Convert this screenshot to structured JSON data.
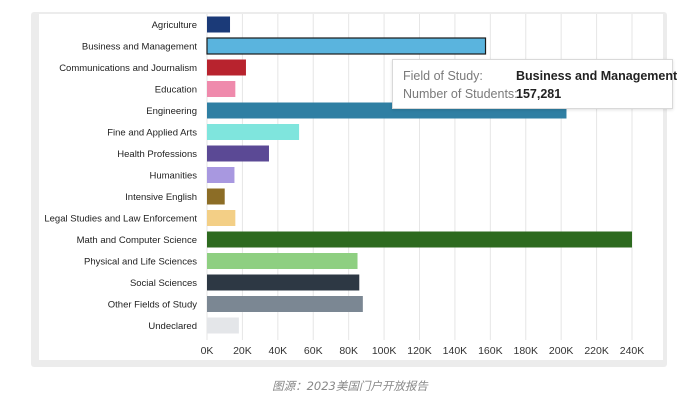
{
  "chart_data": {
    "type": "bar",
    "orientation": "horizontal",
    "categories": [
      "Agriculture",
      "Business and Management",
      "Communications and Journalism",
      "Education",
      "Engineering",
      "Fine and Applied Arts",
      "Health Professions",
      "Humanities",
      "Intensive English",
      "Legal Studies and Law Enforcement",
      "Math and Computer Science",
      "Physical and Life Sciences",
      "Social Sciences",
      "Other Fields of Study",
      "Undeclared"
    ],
    "values": [
      13000,
      157281,
      22000,
      16000,
      203000,
      52000,
      35000,
      15500,
      10000,
      16000,
      240000,
      85000,
      86000,
      88000,
      18000
    ],
    "colors": [
      "#1b3a78",
      "#5ab4de",
      "#b8232e",
      "#ef8aac",
      "#2f7fa3",
      "#7fe5dd",
      "#5b4995",
      "#a898e0",
      "#8c6d26",
      "#f3cf86",
      "#2d6a1f",
      "#8ecf81",
      "#2d3844",
      "#7b8793",
      "#e4e6e9"
    ],
    "highlighted_index": 1,
    "xlim": [
      0,
      240000
    ],
    "xticks": [
      "0K",
      "20K",
      "40K",
      "60K",
      "80K",
      "100K",
      "120K",
      "140K",
      "160K",
      "180K",
      "200K",
      "220K",
      "240K"
    ],
    "grid": "vertical",
    "xlabel": "",
    "ylabel": ""
  },
  "tooltip": {
    "field_label": "Field of Study:",
    "field_value": "Business and Management",
    "count_label": "Number of Students:",
    "count_value": "157,281"
  },
  "caption": "图源：2023美国门户开放报告"
}
